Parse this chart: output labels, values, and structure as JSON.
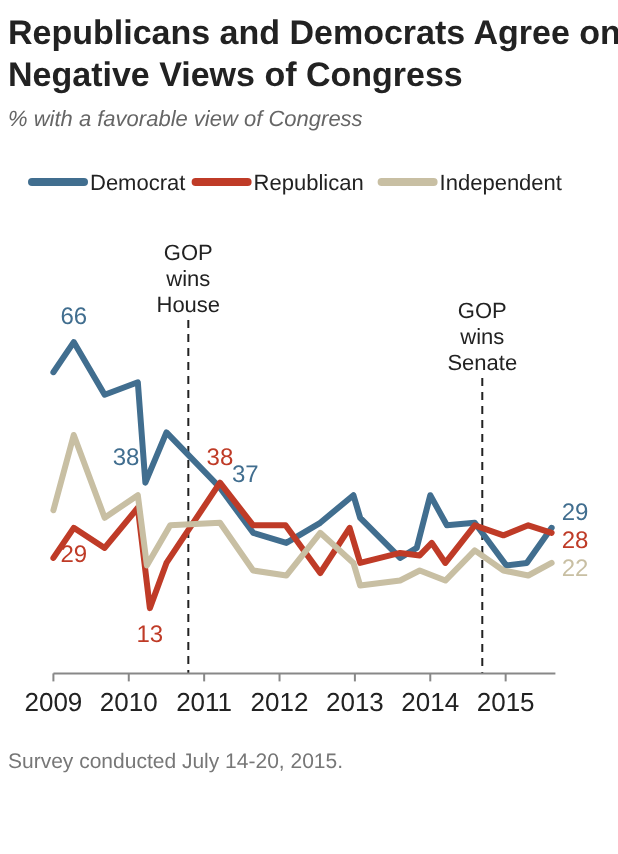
{
  "chart_data": {
    "type": "line",
    "title": "Republicans and Democrats Agree on Negative Views of Congress",
    "subtitle": "% with a favorable view of Congress",
    "annotations": [
      "Survey conducted July 14-20, 2015."
    ],
    "legend": "top",
    "xlim": [
      2009,
      2015.66
    ],
    "xticks": [
      2009,
      2010,
      2011,
      2012,
      2013,
      2014,
      2015
    ],
    "ylim": [
      0,
      70
    ],
    "ref_lines": [
      {
        "axis": "x",
        "value": 2010.79,
        "label": "GOP wins House",
        "line_style": "dashed"
      },
      {
        "axis": "x",
        "value": 2014.69,
        "label": "GOP wins Senate",
        "line_style": "dashed"
      }
    ],
    "series": [
      {
        "name": "Democrat",
        "color": "#416e8f",
        "x": [
          2009,
          2009.27,
          2009.68,
          2010.12,
          2010.22,
          2010.5,
          2011.21,
          2011.65,
          2012.09,
          2012.54,
          2012.98,
          2013.07,
          2013.6,
          2013.82,
          2014,
          2014.22,
          2014.59,
          2015.01,
          2015.28,
          2015.61
        ],
        "values": [
          60,
          66,
          55.5,
          58,
          38,
          48,
          37,
          28,
          26,
          30,
          35.5,
          31,
          23,
          25,
          35.5,
          29.5,
          30,
          21.5,
          22,
          29
        ],
        "value_labels": [
          null,
          "66",
          null,
          null,
          "38",
          null,
          "37",
          null,
          null,
          null,
          null,
          null,
          null,
          null,
          null,
          null,
          null,
          null,
          null,
          "29"
        ]
      },
      {
        "name": "Republican",
        "color": "#bf3b27",
        "x": [
          2009,
          2009.27,
          2009.68,
          2010.12,
          2010.28,
          2010.5,
          2011.21,
          2011.65,
          2012.08,
          2012.54,
          2012.93,
          2013.07,
          2013.6,
          2013.86,
          2014.02,
          2014.2,
          2014.59,
          2014.97,
          2015.3,
          2015.61
        ],
        "values": [
          23,
          29,
          25,
          33,
          13,
          22,
          38,
          29.5,
          29.5,
          20,
          29,
          22,
          24,
          23.5,
          26,
          22,
          29.5,
          27.5,
          29.5,
          28
        ],
        "value_labels": [
          null,
          "29",
          null,
          null,
          "13",
          null,
          "38",
          null,
          null,
          null,
          null,
          null,
          null,
          null,
          null,
          null,
          null,
          null,
          null,
          "28"
        ]
      },
      {
        "name": "Independent",
        "color": "#c8bfa3",
        "x": [
          2009,
          2009.27,
          2009.68,
          2010.12,
          2010.24,
          2010.55,
          2011.21,
          2011.65,
          2012.09,
          2012.54,
          2012.98,
          2013.07,
          2013.6,
          2013.86,
          2014.2,
          2014.59,
          2014.97,
          2015.3,
          2015.61
        ],
        "values": [
          32.5,
          47.5,
          31,
          35.5,
          21.5,
          29.5,
          30,
          20.5,
          19.5,
          28,
          22,
          17.5,
          18.5,
          20.5,
          18.5,
          24.5,
          20.5,
          19.5,
          22
        ],
        "value_labels": [
          null,
          null,
          null,
          null,
          null,
          null,
          null,
          null,
          null,
          null,
          null,
          null,
          null,
          null,
          null,
          null,
          null,
          null,
          "22"
        ]
      }
    ]
  }
}
